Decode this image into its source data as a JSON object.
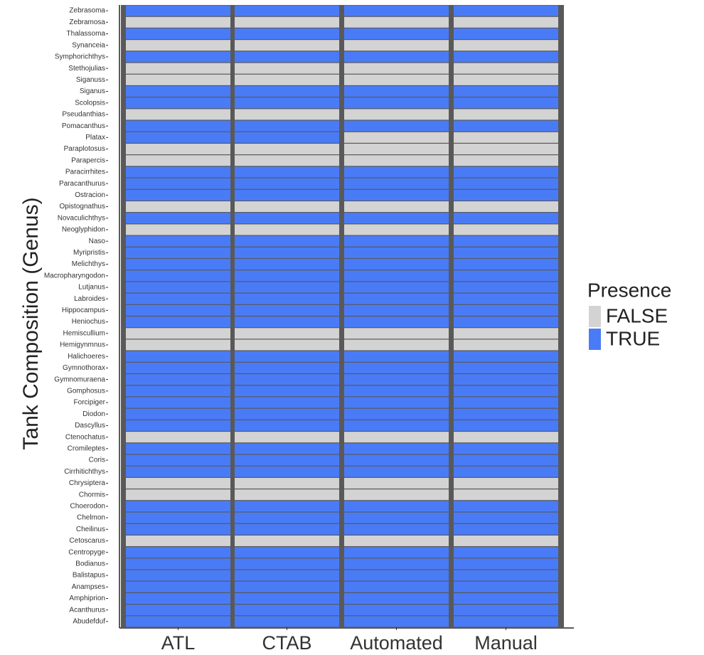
{
  "chart_data": {
    "type": "heatmap",
    "y_label": "Tank Composition (Genus)",
    "x_categories": [
      "ATL",
      "CTAB",
      "Automated",
      "Manual"
    ],
    "y_categories": [
      "Zebrasoma",
      "Zebramosa",
      "Thalassoma",
      "Synanceia",
      "Symphorichthys",
      "Stethojulias",
      "Siganuss",
      "Siganus",
      "Scolopsis",
      "Pseudanthias",
      "Pomacanthus",
      "Platax",
      "Paraplotosus",
      "Parapercis",
      "Paracirrhites",
      "Paracanthurus",
      "Ostracion",
      "Opistognathus",
      "Novaculichthys",
      "Neoglyphidon",
      "Naso",
      "Myripristis",
      "Melichthys",
      "Macropharyngodon",
      "Lutjanus",
      "Labroides",
      "Hippocampus",
      "Heniochus",
      "Hemiscullium",
      "Hemigynmnus",
      "Halichoeres",
      "Gymnothorax",
      "Gymnomuraena",
      "Gomphosus",
      "Forcipiger",
      "Diodon",
      "Dascyllus",
      "Ctenochatus",
      "Cromileptes",
      "Coris",
      "Cirrhitichthys",
      "Chrysiptera",
      "Chormis",
      "Choerodon",
      "Chelmon",
      "Cheilinus",
      "Cetoscarus",
      "Centropyge",
      "Bodianus",
      "Balistapus",
      "Anampses",
      "Amphiprion",
      "Acanthurus",
      "Abudefduf"
    ],
    "values": [
      [
        true,
        true,
        true,
        true
      ],
      [
        false,
        false,
        false,
        false
      ],
      [
        true,
        true,
        true,
        true
      ],
      [
        false,
        false,
        false,
        false
      ],
      [
        true,
        true,
        true,
        true
      ],
      [
        false,
        false,
        false,
        false
      ],
      [
        false,
        false,
        false,
        false
      ],
      [
        true,
        true,
        true,
        true
      ],
      [
        true,
        true,
        true,
        true
      ],
      [
        false,
        false,
        false,
        false
      ],
      [
        true,
        true,
        true,
        true
      ],
      [
        true,
        true,
        false,
        false
      ],
      [
        false,
        false,
        false,
        false
      ],
      [
        false,
        false,
        false,
        false
      ],
      [
        true,
        true,
        true,
        true
      ],
      [
        true,
        true,
        true,
        true
      ],
      [
        true,
        true,
        true,
        true
      ],
      [
        false,
        false,
        false,
        false
      ],
      [
        true,
        true,
        true,
        true
      ],
      [
        false,
        false,
        false,
        false
      ],
      [
        true,
        true,
        true,
        true
      ],
      [
        true,
        true,
        true,
        true
      ],
      [
        true,
        true,
        true,
        true
      ],
      [
        true,
        true,
        true,
        true
      ],
      [
        true,
        true,
        true,
        true
      ],
      [
        true,
        true,
        true,
        true
      ],
      [
        true,
        true,
        true,
        true
      ],
      [
        true,
        true,
        true,
        true
      ],
      [
        false,
        false,
        false,
        false
      ],
      [
        false,
        false,
        false,
        false
      ],
      [
        true,
        true,
        true,
        true
      ],
      [
        true,
        true,
        true,
        true
      ],
      [
        true,
        true,
        true,
        true
      ],
      [
        true,
        true,
        true,
        true
      ],
      [
        true,
        true,
        true,
        true
      ],
      [
        true,
        true,
        true,
        true
      ],
      [
        true,
        true,
        true,
        true
      ],
      [
        false,
        false,
        false,
        false
      ],
      [
        true,
        true,
        true,
        true
      ],
      [
        true,
        true,
        true,
        true
      ],
      [
        true,
        true,
        true,
        true
      ],
      [
        false,
        false,
        false,
        false
      ],
      [
        false,
        false,
        false,
        false
      ],
      [
        true,
        true,
        true,
        true
      ],
      [
        true,
        true,
        true,
        true
      ],
      [
        true,
        true,
        true,
        true
      ],
      [
        false,
        false,
        false,
        false
      ],
      [
        true,
        true,
        true,
        true
      ],
      [
        true,
        true,
        true,
        true
      ],
      [
        true,
        true,
        true,
        true
      ],
      [
        true,
        true,
        true,
        true
      ],
      [
        true,
        true,
        true,
        true
      ],
      [
        true,
        true,
        true,
        true
      ],
      [
        true,
        true,
        true,
        true
      ]
    ],
    "legend": {
      "title": "Presence",
      "items": [
        {
          "label": "FALSE",
          "color": "#d3d3d3"
        },
        {
          "label": "TRUE",
          "color": "#4a7bf7"
        }
      ]
    }
  }
}
